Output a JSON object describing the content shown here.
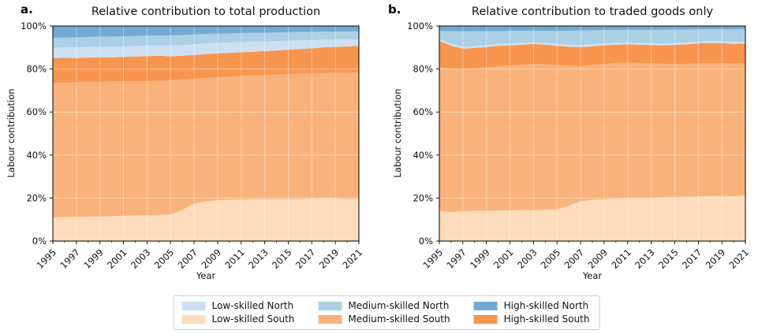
{
  "panels": [
    {
      "letter": "a."
    },
    {
      "letter": "b."
    }
  ],
  "legend": {
    "items": [
      {
        "label": "Low-skilled North",
        "color": "#cde0f2"
      },
      {
        "label": "Medium-skilled North",
        "color": "#abd0e6"
      },
      {
        "label": "High-skilled North",
        "color": "#74aad2"
      },
      {
        "label": "Low-skilled South",
        "color": "#fcdcbb"
      },
      {
        "label": "Medium-skilled South",
        "color": "#f9b27b"
      },
      {
        "label": "High-skilled South",
        "color": "#f7954f"
      }
    ]
  },
  "chart_data": [
    {
      "type": "area",
      "stacked": true,
      "normalized_percent": true,
      "title": "Relative contribution to total production",
      "xlabel": "Year",
      "ylabel": "Labour contribution",
      "ylim": [
        0,
        100
      ],
      "grid": true,
      "x": [
        1995,
        1996,
        1997,
        1998,
        1999,
        2000,
        2001,
        2002,
        2003,
        2004,
        2005,
        2006,
        2007,
        2008,
        2009,
        2010,
        2011,
        2012,
        2013,
        2014,
        2015,
        2016,
        2017,
        2018,
        2019,
        2020,
        2021
      ],
      "x_tick_labels": [
        "1995",
        "1997",
        "1999",
        "2001",
        "2003",
        "2005",
        "2007",
        "2009",
        "2011",
        "2013",
        "2015",
        "2017",
        "2019",
        "2021"
      ],
      "y_tick_labels": [
        "0%",
        "20%",
        "40%",
        "60%",
        "80%",
        "100%"
      ],
      "series": [
        {
          "name": "Low-skilled South",
          "color": "#fcdcbb",
          "values": [
            11.0,
            11.2,
            11.3,
            11.5,
            11.4,
            11.6,
            11.7,
            11.9,
            12.0,
            12.2,
            12.4,
            14.5,
            17.5,
            18.5,
            19.0,
            19.2,
            19.3,
            19.4,
            19.5,
            19.5,
            19.6,
            19.6,
            19.7,
            19.8,
            19.8,
            19.5,
            19.7
          ]
        },
        {
          "name": "Medium-skilled South",
          "color": "#f9b27b",
          "values": [
            62.5,
            62.4,
            62.5,
            62.5,
            62.6,
            62.6,
            62.6,
            62.3,
            62.4,
            62.3,
            62.4,
            60.7,
            58.0,
            57.3,
            57.2,
            57.3,
            57.5,
            57.6,
            57.7,
            57.9,
            58.0,
            58.2,
            58.3,
            58.4,
            58.5,
            58.7,
            58.8
          ]
        },
        {
          "name": "High-skilled South",
          "color": "#f7954f",
          "values": [
            11.5,
            11.6,
            11.3,
            11.3,
            11.5,
            11.2,
            11.3,
            11.6,
            11.6,
            11.7,
            11.1,
            11.0,
            11.0,
            11.2,
            11.1,
            11.0,
            11.0,
            11.0,
            11.1,
            11.2,
            11.4,
            11.5,
            11.6,
            11.8,
            12.0,
            12.3,
            12.3
          ]
        },
        {
          "name": "Low-skilled North",
          "color": "#cde0f2",
          "values": [
            4.8,
            4.8,
            4.9,
            4.9,
            4.8,
            4.9,
            4.9,
            4.9,
            4.9,
            4.8,
            5.0,
            5.0,
            5.0,
            4.9,
            4.8,
            4.8,
            4.7,
            4.6,
            4.5,
            4.4,
            4.2,
            4.0,
            3.8,
            3.6,
            3.4,
            3.2,
            3.1
          ]
        },
        {
          "name": "Medium-skilled North",
          "color": "#abd0e6",
          "values": [
            4.7,
            4.7,
            4.7,
            4.7,
            4.7,
            4.7,
            4.7,
            4.6,
            4.6,
            4.6,
            4.6,
            4.6,
            4.5,
            4.4,
            4.3,
            4.2,
            4.2,
            4.2,
            4.1,
            4.0,
            3.9,
            3.9,
            3.9,
            3.8,
            3.7,
            3.7,
            3.6
          ]
        },
        {
          "name": "High-skilled North",
          "color": "#74aad2",
          "values": [
            5.5,
            5.3,
            5.3,
            5.1,
            5.0,
            5.0,
            4.8,
            4.7,
            4.5,
            4.4,
            4.5,
            4.2,
            4.0,
            3.7,
            3.6,
            3.5,
            3.3,
            3.2,
            3.1,
            3.0,
            2.9,
            2.8,
            2.7,
            2.6,
            2.6,
            2.6,
            2.5
          ]
        }
      ]
    },
    {
      "type": "area",
      "stacked": true,
      "normalized_percent": true,
      "title": "Relative contribution to traded goods only",
      "xlabel": "Year",
      "ylabel": "Labour contribution",
      "ylim": [
        0,
        100
      ],
      "grid": true,
      "x": [
        1995,
        1996,
        1997,
        1998,
        1999,
        2000,
        2001,
        2002,
        2003,
        2004,
        2005,
        2006,
        2007,
        2008,
        2009,
        2010,
        2011,
        2012,
        2013,
        2014,
        2015,
        2016,
        2017,
        2018,
        2019,
        2020,
        2021
      ],
      "x_tick_labels": [
        "1995",
        "1997",
        "1999",
        "2001",
        "2003",
        "2005",
        "2007",
        "2009",
        "2011",
        "2013",
        "2015",
        "2017",
        "2019",
        "2021"
      ],
      "y_tick_labels": [
        "0%",
        "20%",
        "40%",
        "60%",
        "80%",
        "100%"
      ],
      "series": [
        {
          "name": "Low-skilled South",
          "color": "#fcdcbb",
          "values": [
            14.0,
            13.5,
            13.8,
            14.2,
            14.0,
            14.2,
            14.3,
            14.5,
            14.4,
            14.6,
            14.8,
            16.5,
            18.5,
            19.2,
            19.5,
            19.7,
            19.8,
            20.0,
            20.1,
            20.3,
            20.5,
            20.6,
            20.8,
            21.0,
            21.0,
            20.8,
            21.2
          ]
        },
        {
          "name": "Medium-skilled South",
          "color": "#f9b27b",
          "values": [
            66.9,
            66.7,
            66.2,
            66.2,
            66.8,
            67.0,
            67.3,
            67.5,
            68.0,
            67.6,
            67.0,
            65.0,
            62.8,
            62.6,
            62.8,
            63.1,
            63.2,
            62.8,
            62.5,
            62.1,
            61.8,
            61.8,
            61.8,
            61.8,
            61.7,
            61.7,
            61.5
          ]
        },
        {
          "name": "High-skilled South",
          "color": "#f7954f",
          "values": [
            12.1,
            10.6,
            9.5,
            9.4,
            9.4,
            9.6,
            9.4,
            9.3,
            9.2,
            9.1,
            9.0,
            8.9,
            8.9,
            8.8,
            8.7,
            8.5,
            8.5,
            8.5,
            8.5,
            8.6,
            8.9,
            9.1,
            9.3,
            9.3,
            9.3,
            9.2,
            9.2
          ]
        },
        {
          "name": "Low-skilled North",
          "color": "#cde0f2",
          "values": [
            0.8,
            0.9,
            0.9,
            0.9,
            0.9,
            0.9,
            0.9,
            0.9,
            0.9,
            0.9,
            0.9,
            0.9,
            0.9,
            0.9,
            0.9,
            0.9,
            0.9,
            0.9,
            0.9,
            0.9,
            0.9,
            0.9,
            0.9,
            0.9,
            0.9,
            0.9,
            0.9
          ]
        },
        {
          "name": "Medium-skilled North",
          "color": "#abd0e6",
          "values": [
            3.9,
            5.9,
            7.1,
            6.8,
            6.5,
            5.9,
            5.8,
            5.6,
            5.3,
            5.6,
            6.0,
            6.5,
            6.8,
            6.5,
            6.2,
            5.9,
            5.8,
            6.0,
            6.2,
            6.4,
            6.2,
            6.0,
            5.6,
            5.5,
            5.6,
            5.8,
            5.7
          ]
        },
        {
          "name": "High-skilled North",
          "color": "#74aad2",
          "values": [
            2.3,
            2.4,
            2.5,
            2.5,
            2.4,
            2.4,
            2.3,
            2.2,
            2.2,
            2.2,
            2.3,
            2.2,
            2.1,
            2.0,
            1.9,
            1.9,
            1.8,
            1.8,
            1.8,
            1.7,
            1.7,
            1.6,
            1.6,
            1.5,
            1.5,
            1.6,
            1.5
          ]
        }
      ]
    }
  ]
}
